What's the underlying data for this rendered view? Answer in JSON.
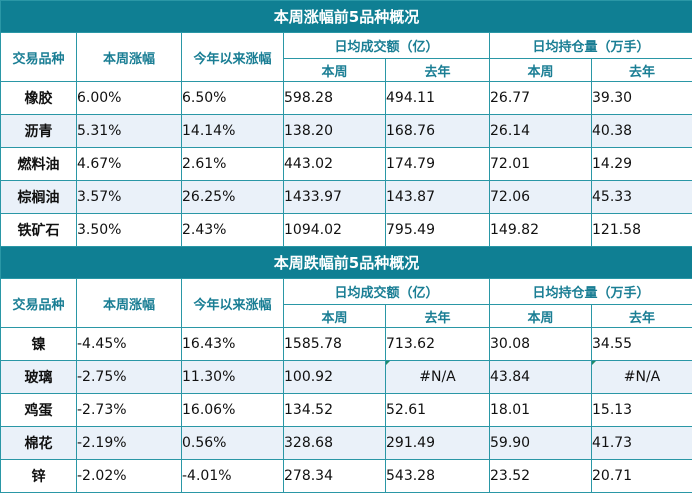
{
  "rise": {
    "title": "本周涨幅前5品种概况",
    "headers": {
      "variety": "交易品种",
      "week_change": "本周涨幅",
      "ytd_change": "今年以来涨幅",
      "turnover_group": "日均成交额（亿）",
      "oi_group": "日均持仓量（万手）",
      "this_week": "本周",
      "last_year": "去年"
    },
    "rows": [
      {
        "name": "橡胶",
        "week": "6.00%",
        "ytd": "6.50%",
        "turnover_week": "598.28",
        "turnover_last": "494.11",
        "oi_week": "26.77",
        "oi_last": "39.30"
      },
      {
        "name": "沥青",
        "week": "5.31%",
        "ytd": "14.14%",
        "turnover_week": "138.20",
        "turnover_last": "168.76",
        "oi_week": "26.14",
        "oi_last": "40.38"
      },
      {
        "name": "燃料油",
        "week": "4.67%",
        "ytd": "2.61%",
        "turnover_week": "443.02",
        "turnover_last": "174.79",
        "oi_week": "72.01",
        "oi_last": "14.29"
      },
      {
        "name": "棕榈油",
        "week": "3.57%",
        "ytd": "26.25%",
        "turnover_week": "1433.97",
        "turnover_last": "143.87",
        "oi_week": "72.06",
        "oi_last": "45.33"
      },
      {
        "name": "铁矿石",
        "week": "3.50%",
        "ytd": "2.43%",
        "turnover_week": "1094.02",
        "turnover_last": "795.49",
        "oi_week": "149.82",
        "oi_last": "121.58"
      }
    ]
  },
  "fall": {
    "title": "本周跌幅前5品种概况",
    "headers": {
      "variety": "交易品种",
      "week_change": "本周涨幅",
      "ytd_change": "今年以来涨幅",
      "turnover_group": "日均成交额（亿）",
      "oi_group": "日均持仓量（万手）",
      "this_week": "本周",
      "last_year": "去年"
    },
    "rows": [
      {
        "name": "镍",
        "week": "-4.45%",
        "ytd": "16.43%",
        "turnover_week": "1585.78",
        "turnover_last": "713.62",
        "oi_week": "30.08",
        "oi_last": "34.55"
      },
      {
        "name": "玻璃",
        "week": "-2.75%",
        "ytd": "11.30%",
        "turnover_week": "100.92",
        "turnover_last": "#N/A",
        "oi_week": "43.84",
        "oi_last": "#N/A"
      },
      {
        "name": "鸡蛋",
        "week": "-2.73%",
        "ytd": "16.06%",
        "turnover_week": "134.52",
        "turnover_last": "52.61",
        "oi_week": "18.01",
        "oi_last": "15.13"
      },
      {
        "name": "棉花",
        "week": "-2.19%",
        "ytd": "0.56%",
        "turnover_week": "328.68",
        "turnover_last": "291.49",
        "oi_week": "59.90",
        "oi_last": "41.73"
      },
      {
        "name": "锌",
        "week": "-2.02%",
        "ytd": "-4.01%",
        "turnover_week": "278.34",
        "turnover_last": "543.28",
        "oi_week": "23.52",
        "oi_last": "20.71"
      }
    ]
  }
}
